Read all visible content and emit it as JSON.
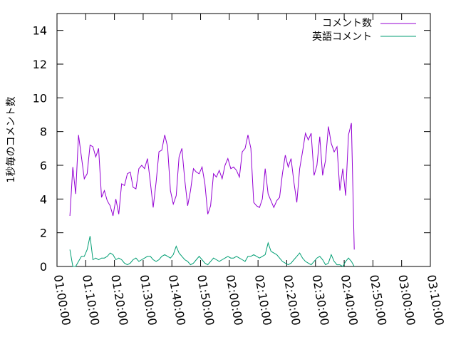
{
  "chart_data": {
    "type": "line",
    "ylabel": "1秒毎のコメント数",
    "xlabel": "",
    "ylim": [
      0,
      15
    ],
    "yticks": [
      0,
      2,
      4,
      6,
      8,
      10,
      12,
      14
    ],
    "xlim": [
      "01:00:00",
      "03:10:00"
    ],
    "xticks": [
      "01:00:00",
      "01:10:00",
      "01:20:00",
      "01:30:00",
      "01:40:00",
      "01:50:00",
      "02:00:00",
      "02:10:00",
      "02:20:00",
      "02:30:00",
      "02:40:00",
      "02:50:00",
      "03:00:00",
      "03:10:00"
    ],
    "legend_position": "top-right",
    "grid": false,
    "series": [
      {
        "name": "コメント数",
        "color": "#9400d3",
        "points": [
          [
            "01:04:30",
            3.0
          ],
          [
            "01:05:30",
            5.9
          ],
          [
            "01:06:30",
            4.3
          ],
          [
            "01:07:30",
            7.8
          ],
          [
            "01:08:30",
            6.5
          ],
          [
            "01:09:30",
            5.2
          ],
          [
            "01:10:30",
            5.5
          ],
          [
            "01:11:30",
            7.2
          ],
          [
            "01:12:30",
            7.1
          ],
          [
            "01:13:30",
            6.5
          ],
          [
            "01:14:30",
            7.0
          ],
          [
            "01:15:30",
            4.1
          ],
          [
            "01:16:30",
            4.5
          ],
          [
            "01:17:30",
            3.9
          ],
          [
            "01:18:30",
            3.6
          ],
          [
            "01:19:30",
            3.0
          ],
          [
            "01:20:30",
            4.0
          ],
          [
            "01:21:30",
            3.1
          ],
          [
            "01:22:30",
            4.9
          ],
          [
            "01:23:30",
            4.8
          ],
          [
            "01:24:30",
            5.5
          ],
          [
            "01:25:30",
            5.6
          ],
          [
            "01:26:30",
            4.7
          ],
          [
            "01:27:30",
            4.6
          ],
          [
            "01:28:30",
            5.8
          ],
          [
            "01:29:30",
            6.0
          ],
          [
            "01:30:30",
            5.8
          ],
          [
            "01:31:30",
            6.4
          ],
          [
            "01:32:30",
            5.0
          ],
          [
            "01:33:30",
            3.5
          ],
          [
            "01:34:30",
            5.0
          ],
          [
            "01:35:30",
            6.8
          ],
          [
            "01:36:30",
            6.9
          ],
          [
            "01:37:30",
            7.8
          ],
          [
            "01:38:30",
            7.1
          ],
          [
            "01:39:30",
            4.5
          ],
          [
            "01:40:30",
            3.7
          ],
          [
            "01:41:30",
            4.2
          ],
          [
            "01:42:30",
            6.5
          ],
          [
            "01:43:30",
            7.0
          ],
          [
            "01:44:30",
            5.1
          ],
          [
            "01:45:30",
            3.6
          ],
          [
            "01:46:30",
            4.5
          ],
          [
            "01:47:30",
            5.8
          ],
          [
            "01:48:30",
            5.6
          ],
          [
            "01:49:30",
            5.5
          ],
          [
            "01:50:30",
            5.9
          ],
          [
            "01:51:30",
            4.9
          ],
          [
            "01:52:30",
            3.1
          ],
          [
            "01:53:30",
            3.6
          ],
          [
            "01:54:30",
            5.5
          ],
          [
            "01:55:30",
            5.3
          ],
          [
            "01:56:30",
            5.7
          ],
          [
            "01:57:30",
            5.2
          ],
          [
            "01:58:30",
            6.0
          ],
          [
            "01:59:30",
            6.4
          ],
          [
            "02:00:30",
            5.8
          ],
          [
            "02:01:30",
            5.9
          ],
          [
            "02:02:30",
            5.7
          ],
          [
            "02:03:30",
            5.3
          ],
          [
            "02:04:30",
            6.8
          ],
          [
            "02:05:30",
            7.0
          ],
          [
            "02:06:30",
            7.8
          ],
          [
            "02:07:30",
            7.0
          ],
          [
            "02:08:30",
            3.8
          ],
          [
            "02:09:30",
            3.6
          ],
          [
            "02:10:30",
            3.5
          ],
          [
            "02:11:30",
            4.0
          ],
          [
            "02:12:30",
            5.8
          ],
          [
            "02:13:30",
            4.3
          ],
          [
            "02:14:30",
            3.9
          ],
          [
            "02:15:30",
            3.5
          ],
          [
            "02:16:30",
            3.9
          ],
          [
            "02:17:30",
            4.1
          ],
          [
            "02:18:30",
            5.5
          ],
          [
            "02:19:30",
            6.6
          ],
          [
            "02:20:30",
            5.9
          ],
          [
            "02:21:30",
            6.4
          ],
          [
            "02:22:30",
            5.0
          ],
          [
            "02:23:30",
            3.8
          ],
          [
            "02:24:30",
            5.8
          ],
          [
            "02:25:30",
            6.8
          ],
          [
            "02:26:30",
            7.9
          ],
          [
            "02:27:30",
            7.5
          ],
          [
            "02:28:30",
            7.9
          ],
          [
            "02:29:30",
            5.4
          ],
          [
            "02:30:30",
            6.0
          ],
          [
            "02:31:30",
            7.7
          ],
          [
            "02:32:30",
            5.4
          ],
          [
            "02:33:30",
            6.3
          ],
          [
            "02:34:30",
            8.3
          ],
          [
            "02:35:30",
            7.3
          ],
          [
            "02:36:30",
            6.8
          ],
          [
            "02:37:30",
            7.1
          ],
          [
            "02:38:30",
            4.5
          ],
          [
            "02:39:30",
            5.8
          ],
          [
            "02:40:30",
            4.2
          ],
          [
            "02:41:30",
            7.8
          ],
          [
            "02:42:30",
            8.5
          ],
          [
            "02:43:30",
            1.0
          ]
        ]
      },
      {
        "name": "英語コメント",
        "color": "#009e73",
        "points": [
          [
            "01:04:30",
            1.0
          ],
          [
            "01:05:30",
            0.0
          ],
          [
            "01:06:30",
            0.0
          ],
          [
            "01:07:30",
            0.3
          ],
          [
            "01:08:30",
            0.6
          ],
          [
            "01:09:30",
            0.6
          ],
          [
            "01:10:30",
            1.0
          ],
          [
            "01:11:30",
            1.8
          ],
          [
            "01:12:30",
            0.4
          ],
          [
            "01:13:30",
            0.5
          ],
          [
            "01:14:30",
            0.4
          ],
          [
            "01:15:30",
            0.5
          ],
          [
            "01:16:30",
            0.5
          ],
          [
            "01:17:30",
            0.6
          ],
          [
            "01:18:30",
            0.8
          ],
          [
            "01:19:30",
            0.7
          ],
          [
            "01:20:30",
            0.4
          ],
          [
            "01:21:30",
            0.5
          ],
          [
            "01:22:30",
            0.4
          ],
          [
            "01:23:30",
            0.2
          ],
          [
            "01:24:30",
            0.1
          ],
          [
            "01:25:30",
            0.2
          ],
          [
            "01:26:30",
            0.4
          ],
          [
            "01:27:30",
            0.5
          ],
          [
            "01:28:30",
            0.3
          ],
          [
            "01:29:30",
            0.4
          ],
          [
            "01:30:30",
            0.5
          ],
          [
            "01:31:30",
            0.6
          ],
          [
            "01:32:30",
            0.6
          ],
          [
            "01:33:30",
            0.4
          ],
          [
            "01:34:30",
            0.3
          ],
          [
            "01:35:30",
            0.4
          ],
          [
            "01:36:30",
            0.6
          ],
          [
            "01:37:30",
            0.7
          ],
          [
            "01:38:30",
            0.6
          ],
          [
            "01:39:30",
            0.5
          ],
          [
            "01:40:30",
            0.7
          ],
          [
            "01:41:30",
            1.2
          ],
          [
            "01:42:30",
            0.8
          ],
          [
            "01:43:30",
            0.6
          ],
          [
            "01:44:30",
            0.4
          ],
          [
            "01:45:30",
            0.3
          ],
          [
            "01:46:30",
            0.1
          ],
          [
            "01:47:30",
            0.2
          ],
          [
            "01:48:30",
            0.4
          ],
          [
            "01:49:30",
            0.6
          ],
          [
            "01:50:30",
            0.4
          ],
          [
            "01:51:30",
            0.2
          ],
          [
            "01:52:30",
            0.1
          ],
          [
            "01:53:30",
            0.3
          ],
          [
            "01:54:30",
            0.5
          ],
          [
            "01:55:30",
            0.4
          ],
          [
            "01:56:30",
            0.3
          ],
          [
            "01:57:30",
            0.4
          ],
          [
            "01:58:30",
            0.5
          ],
          [
            "01:59:30",
            0.6
          ],
          [
            "02:00:30",
            0.5
          ],
          [
            "02:01:30",
            0.5
          ],
          [
            "02:02:30",
            0.6
          ],
          [
            "02:03:30",
            0.5
          ],
          [
            "02:04:30",
            0.4
          ],
          [
            "02:05:30",
            0.3
          ],
          [
            "02:06:30",
            0.6
          ],
          [
            "02:07:30",
            0.6
          ],
          [
            "02:08:30",
            0.7
          ],
          [
            "02:09:30",
            0.6
          ],
          [
            "02:10:30",
            0.5
          ],
          [
            "02:11:30",
            0.6
          ],
          [
            "02:12:30",
            0.7
          ],
          [
            "02:13:30",
            1.4
          ],
          [
            "02:14:30",
            0.9
          ],
          [
            "02:15:30",
            0.8
          ],
          [
            "02:16:30",
            0.7
          ],
          [
            "02:17:30",
            0.5
          ],
          [
            "02:18:30",
            0.3
          ],
          [
            "02:19:30",
            0.2
          ],
          [
            "02:20:30",
            0.1
          ],
          [
            "02:21:30",
            0.2
          ],
          [
            "02:22:30",
            0.4
          ],
          [
            "02:23:30",
            0.6
          ],
          [
            "02:24:30",
            0.8
          ],
          [
            "02:25:30",
            0.5
          ],
          [
            "02:26:30",
            0.3
          ],
          [
            "02:27:30",
            0.2
          ],
          [
            "02:28:30",
            0.1
          ],
          [
            "02:29:30",
            0.3
          ],
          [
            "02:30:30",
            0.5
          ],
          [
            "02:31:30",
            0.6
          ],
          [
            "02:32:30",
            0.4
          ],
          [
            "02:33:30",
            0.1
          ],
          [
            "02:34:30",
            0.2
          ],
          [
            "02:35:30",
            0.7
          ],
          [
            "02:36:30",
            0.3
          ],
          [
            "02:37:30",
            0.1
          ],
          [
            "02:38:30",
            0.1
          ],
          [
            "02:39:30",
            0.0
          ],
          [
            "02:40:30",
            0.3
          ],
          [
            "02:41:30",
            0.5
          ],
          [
            "02:42:30",
            0.3
          ],
          [
            "02:43:30",
            0.0
          ]
        ]
      }
    ]
  }
}
